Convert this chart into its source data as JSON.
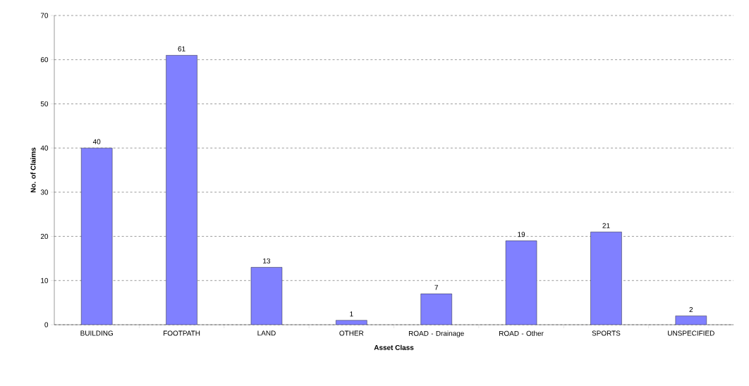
{
  "chart_data": {
    "type": "bar",
    "xlabel": "Asset Class",
    "ylabel": "No. of Claims",
    "categories": [
      "BUILDING",
      "FOOTPATH",
      "LAND",
      "OTHER",
      "ROAD - Drainage",
      "ROAD - Other",
      "SPORTS",
      "UNSPECIFIED"
    ],
    "values": [
      40,
      61,
      13,
      1,
      7,
      19,
      21,
      2
    ],
    "color": "#8080ff",
    "ylim": [
      0,
      70
    ],
    "yticks": [
      0,
      10,
      20,
      30,
      40,
      50,
      60,
      70
    ],
    "grid": "y",
    "data_labels": true
  }
}
